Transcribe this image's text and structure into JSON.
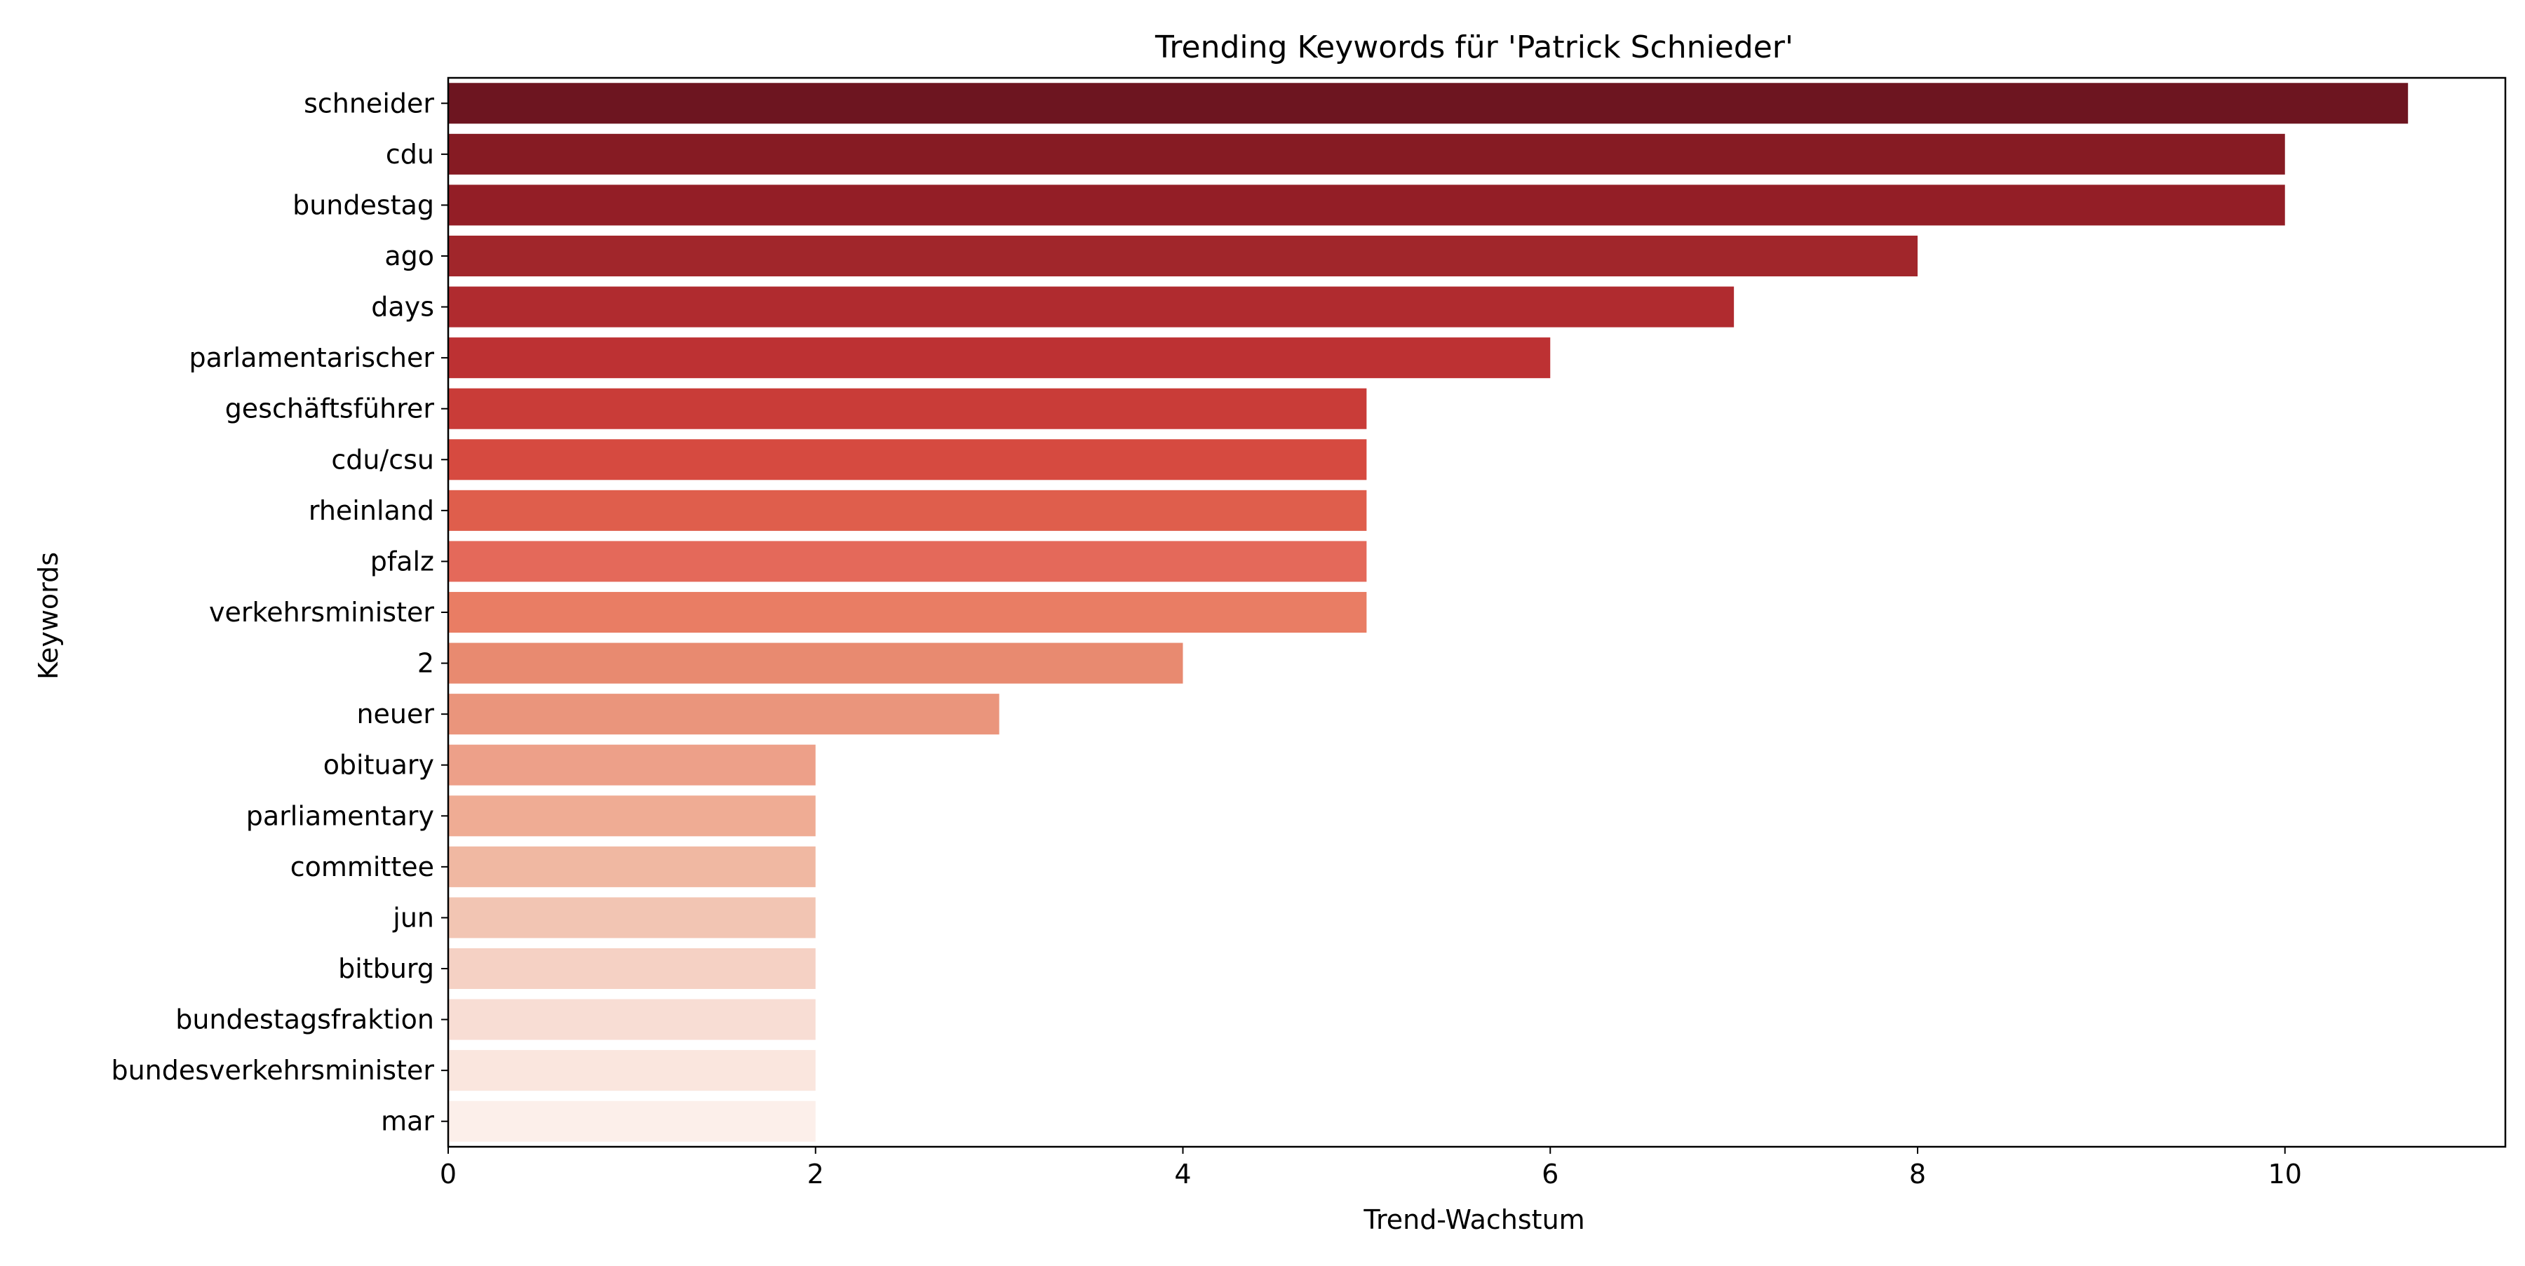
{
  "chart_data": {
    "type": "bar",
    "orientation": "horizontal",
    "title": "Trending Keywords für 'Patrick Schnieder'",
    "xlabel": "Trend-Wachstum",
    "ylabel": "Keywords",
    "xlim": [
      0,
      11.2
    ],
    "xticks": [
      0,
      2,
      4,
      6,
      8,
      10
    ],
    "grid": false,
    "legend": "none",
    "categories": [
      "schneider",
      "cdu",
      "bundestag",
      "ago",
      "days",
      "parlamentarischer",
      "geschäftsführer",
      "cdu/csu",
      "rheinland",
      "pfalz",
      "verkehrsminister",
      "2",
      "neuer",
      "obituary",
      "parliamentary",
      "committee",
      "jun",
      "bitburg",
      "bundestagsfraktion",
      "bundesverkehrsminister",
      "mar"
    ],
    "values": [
      10.67,
      10,
      10,
      8,
      7,
      6,
      5,
      5,
      5,
      5,
      5,
      4,
      3,
      2,
      2,
      2,
      2,
      2,
      2,
      2,
      2
    ],
    "colors": [
      "#6d1520",
      "#861b23",
      "#931e26",
      "#a1262b",
      "#b02b2f",
      "#bd3133",
      "#c93c38",
      "#d64a40",
      "#df5e4c",
      "#e4695a",
      "#e97d64",
      "#e88a70",
      "#ea957c",
      "#eda089",
      "#efac94",
      "#f0b8a2",
      "#f2c5b3",
      "#f5d1c4",
      "#f8ddd4",
      "#fae6de",
      "#fcefea"
    ]
  }
}
